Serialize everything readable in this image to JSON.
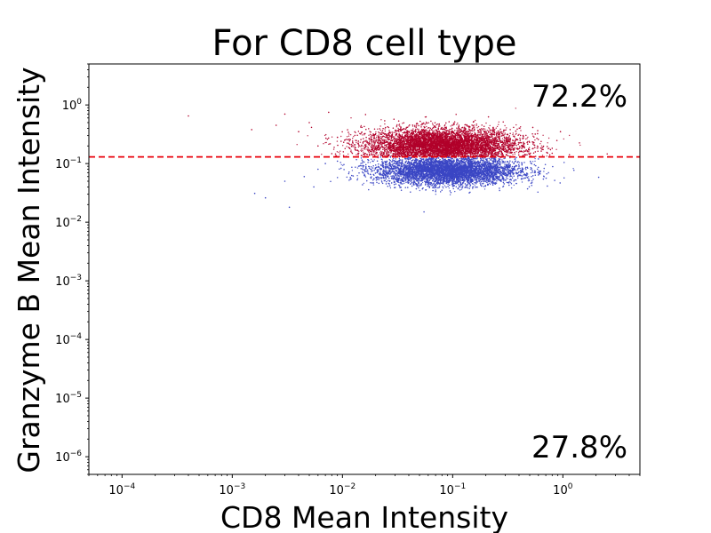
{
  "chart_data": {
    "type": "scatter",
    "title": "For CD8 cell type",
    "xlabel": "CD8 Mean Intensity",
    "ylabel": "Granzyme B Mean Intensity",
    "xscale": "log",
    "yscale": "log",
    "xlim": [
      5e-05,
      5
    ],
    "ylim": [
      5e-07,
      5
    ],
    "x_ticks": [
      {
        "base": "10",
        "exp": "−4",
        "value": 0.0001
      },
      {
        "base": "10",
        "exp": "−3",
        "value": 0.001
      },
      {
        "base": "10",
        "exp": "−2",
        "value": 0.01
      },
      {
        "base": "10",
        "exp": "−1",
        "value": 0.1
      },
      {
        "base": "10",
        "exp": "0",
        "value": 1
      }
    ],
    "y_ticks": [
      {
        "base": "10",
        "exp": "−6",
        "value": 1e-06
      },
      {
        "base": "10",
        "exp": "−5",
        "value": 1e-05
      },
      {
        "base": "10",
        "exp": "−4",
        "value": 0.0001
      },
      {
        "base": "10",
        "exp": "−3",
        "value": 0.001
      },
      {
        "base": "10",
        "exp": "−2",
        "value": 0.01
      },
      {
        "base": "10",
        "exp": "−1",
        "value": 0.1
      },
      {
        "base": "10",
        "exp": "0",
        "value": 1
      }
    ],
    "threshold": {
      "y": 0.13,
      "color": "#e8000b",
      "style": "dashed"
    },
    "series": [
      {
        "color": "#b2002a",
        "population": "above threshold",
        "distribution": {
          "x_center": 0.08,
          "y_center": 0.2,
          "x_spread_decades": 0.35,
          "y_spread_decades": 0.15
        },
        "outliers": [
          [
            0.0004,
            0.65
          ],
          [
            0.0015,
            0.38
          ],
          [
            0.0025,
            0.45
          ],
          [
            0.003,
            0.7
          ],
          [
            0.004,
            0.35
          ],
          [
            0.005,
            0.5
          ],
          [
            0.006,
            0.2
          ],
          [
            0.0075,
            0.75
          ],
          [
            0.009,
            0.28
          ],
          [
            0.95,
            0.35
          ],
          [
            0.8,
            0.15
          ]
        ],
        "percent_label": "72.2%"
      },
      {
        "color": "#3b47c4",
        "population": "below threshold",
        "distribution": {
          "x_center": 0.09,
          "y_center": 0.075,
          "x_spread_decades": 0.32,
          "y_spread_decades": 0.12
        },
        "outliers": [
          [
            0.0016,
            0.031
          ],
          [
            0.002,
            0.026
          ],
          [
            0.003,
            0.05
          ],
          [
            0.0033,
            0.018
          ],
          [
            0.0045,
            0.06
          ],
          [
            0.0055,
            0.04
          ],
          [
            0.007,
            0.1
          ],
          [
            0.006,
            0.08
          ],
          [
            0.009,
            0.11
          ],
          [
            0.055,
            0.015
          ],
          [
            0.6,
            0.12
          ]
        ],
        "percent_label": "27.8%"
      }
    ],
    "annotations": [
      {
        "text": "72.2%",
        "position": "upper-right"
      },
      {
        "text": "27.8%",
        "position": "lower-right"
      }
    ]
  }
}
